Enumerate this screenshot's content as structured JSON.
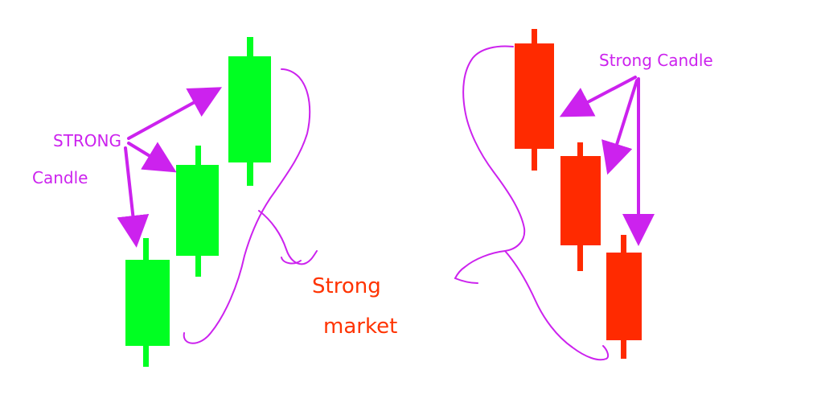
{
  "labels": {
    "strong": "STRONG",
    "candle": "Candle",
    "strong_candle": "Strong Candle",
    "strong_market_line1": "Strong",
    "strong_market_line2": "market"
  },
  "colors": {
    "bullish": "#00ff22",
    "bearish": "#ff2a00",
    "annotation": "#cc22ee",
    "market_text": "#ff3300"
  },
  "bullish_candles": [
    {
      "name": "bullish-candle-1",
      "open": 1,
      "close": 2
    },
    {
      "name": "bullish-candle-2",
      "open": 2,
      "close": 3
    },
    {
      "name": "bullish-candle-3",
      "open": 3,
      "close": 4
    }
  ],
  "bearish_candles": [
    {
      "name": "bearish-candle-1",
      "open": 4,
      "close": 3
    },
    {
      "name": "bearish-candle-2",
      "open": 3,
      "close": 2
    },
    {
      "name": "bearish-candle-3",
      "open": 2,
      "close": 1
    }
  ]
}
